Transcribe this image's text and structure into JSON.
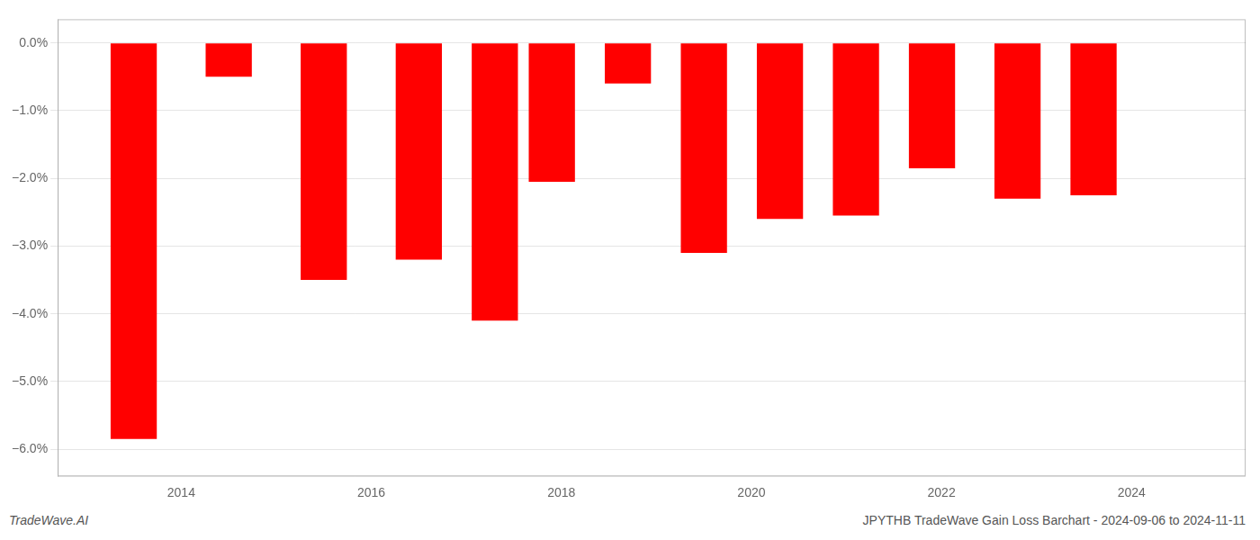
{
  "chart_data": {
    "type": "bar",
    "x": [
      2013.5,
      2014.5,
      2015.5,
      2016.5,
      2017.3,
      2017.9,
      2018.7,
      2019.5,
      2020.3,
      2021.1,
      2021.9,
      2022.8,
      2023.6
    ],
    "values": [
      -5.85,
      -0.5,
      -3.5,
      -3.2,
      -4.1,
      -2.05,
      -0.6,
      -3.1,
      -2.6,
      -2.55,
      -1.85,
      -2.3,
      -2.25
    ],
    "color": "#ff0000",
    "xlim": [
      2012.7,
      2025.2
    ],
    "xticks": [
      2014,
      2016,
      2018,
      2020,
      2022,
      2024
    ],
    "ylim": [
      -6.4,
      0.35
    ],
    "yticks": [
      {
        "value": 0.0,
        "label": "0.0%"
      },
      {
        "value": -1.0,
        "label": "−1.0%"
      },
      {
        "value": -2.0,
        "label": "−2.0%"
      },
      {
        "value": -3.0,
        "label": "−3.0%"
      },
      {
        "value": -4.0,
        "label": "−4.0%"
      },
      {
        "value": -5.0,
        "label": "−5.0%"
      },
      {
        "value": -6.0,
        "label": "−6.0%"
      }
    ],
    "grid": "y",
    "annotations": [
      "TradeWave.AI",
      "JPYTHB TradeWave Gain Loss Barchart - 2024-09-06 to 2024-11-11"
    ]
  }
}
